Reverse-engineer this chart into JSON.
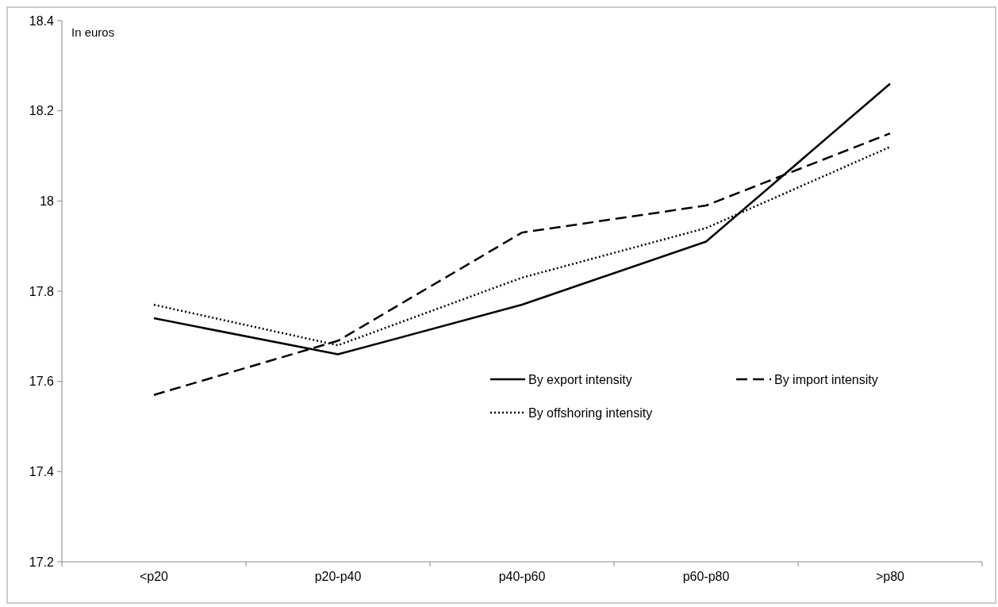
{
  "chart_data": {
    "type": "line",
    "annotations": [
      "In euros"
    ],
    "categories": [
      "<p20",
      "p20-p40",
      "p40-p60",
      "p60-p80",
      ">p80"
    ],
    "series": [
      {
        "name": "By export intensity",
        "color": "#000000",
        "line_style": "solid",
        "values": [
          17.74,
          17.66,
          17.77,
          17.91,
          18.26
        ]
      },
      {
        "name": "By import intensity",
        "color": "#000000",
        "line_style": "dashed",
        "values": [
          17.57,
          17.69,
          17.93,
          17.99,
          18.15
        ]
      },
      {
        "name": "By offshoring intensity",
        "color": "#000000",
        "line_style": "dotted",
        "values": [
          17.77,
          17.68,
          17.83,
          17.94,
          18.12
        ]
      }
    ],
    "ylim": [
      17.2,
      18.4
    ],
    "yticks": [
      17.2,
      17.4,
      17.6,
      17.8,
      {
        "value": 18,
        "label": "18"
      },
      18.2,
      18.4
    ],
    "legend": "right",
    "grid": false,
    "marker": "none"
  }
}
